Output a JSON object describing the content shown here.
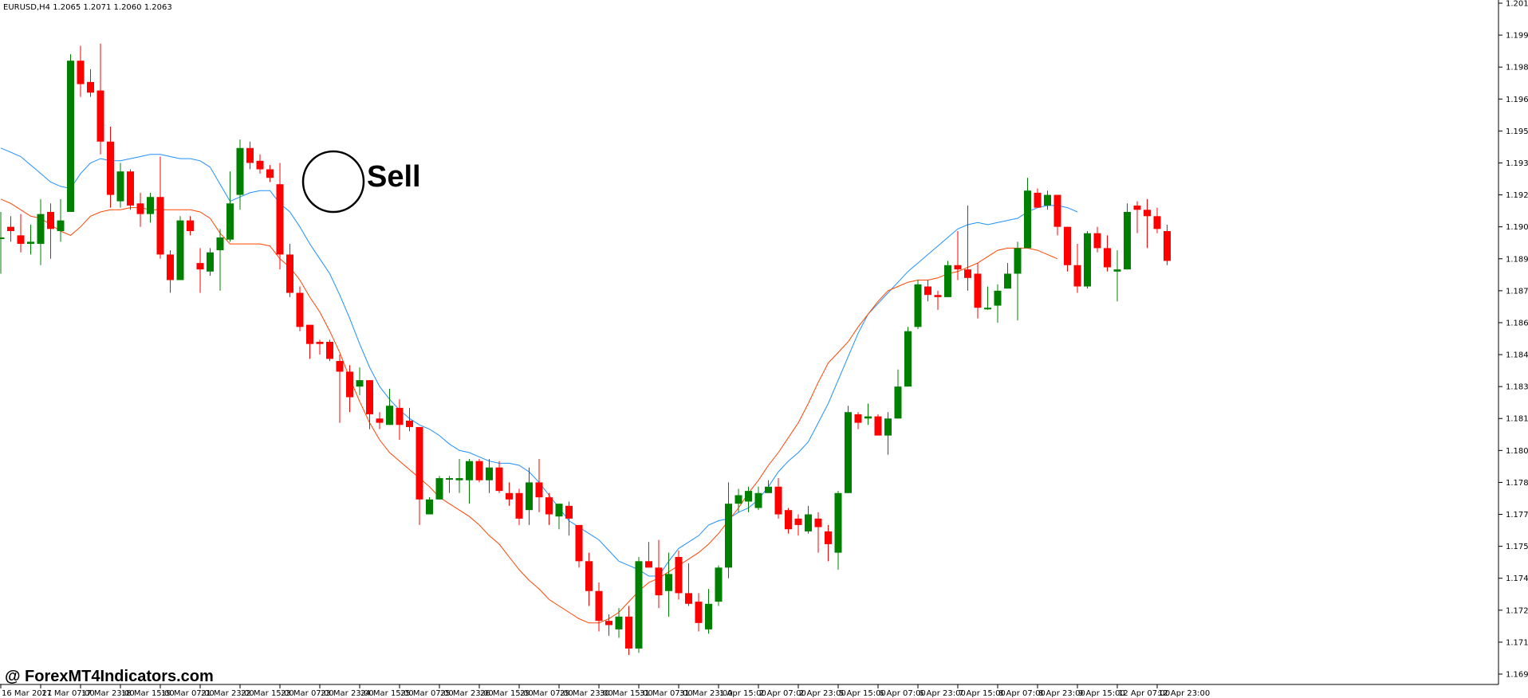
{
  "header": {
    "symbol_info": "EURUSD,H4 1.2065 1.2071 1.2060 1.2063"
  },
  "annotation": {
    "signal_label": "Sell"
  },
  "watermark": {
    "text": "@ ForexMT4Indicators.com"
  },
  "colors": {
    "bull": "#008000",
    "bear": "#ff0000",
    "ma_fast": "#1e90ff",
    "ma_slow": "#ff4500",
    "axis": "#000000"
  },
  "chart_data": {
    "type": "candlestick",
    "instrument": "EURUSD",
    "timeframe": "H4",
    "last_quote": {
      "open": 1.2065,
      "high": 1.2071,
      "low": 1.206,
      "close": 1.2063
    },
    "ylim": [
      1.1695,
      1.201
    ],
    "y_ticks": [
      "1.2010",
      "1.1995",
      "1.1980",
      "1.1965",
      "1.1950",
      "1.1935",
      "1.1920",
      "1.1905",
      "1.1890",
      "1.1875",
      "1.1860",
      "1.1845",
      "1.1830",
      "1.1815",
      "1.1800",
      "1.1785",
      "1.1770",
      "1.1755",
      "1.1740",
      "1.1725",
      "1.1710",
      "1.1695"
    ],
    "x_ticks": [
      {
        "label": "16 Mar 2021",
        "i": 0
      },
      {
        "label": "17 Mar 07:00",
        "i": 4
      },
      {
        "label": "17 Mar 23:00",
        "i": 8
      },
      {
        "label": "18 Mar 15:00",
        "i": 12
      },
      {
        "label": "19 Mar 07:00",
        "i": 16
      },
      {
        "label": "21 Mar 23:00",
        "i": 20
      },
      {
        "label": "22 Mar 15:00",
        "i": 24
      },
      {
        "label": "23 Mar 07:00",
        "i": 28
      },
      {
        "label": "23 Mar 23:00",
        "i": 32
      },
      {
        "label": "24 Mar 15:00",
        "i": 36
      },
      {
        "label": "25 Mar 07:00",
        "i": 40
      },
      {
        "label": "25 Mar 23:00",
        "i": 44
      },
      {
        "label": "26 Mar 15:00",
        "i": 48
      },
      {
        "label": "29 Mar 07:00",
        "i": 52
      },
      {
        "label": "29 Mar 23:00",
        "i": 56
      },
      {
        "label": "30 Mar 15:00",
        "i": 60
      },
      {
        "label": "31 Mar 07:00",
        "i": 64
      },
      {
        "label": "31 Mar 23:00",
        "i": 68
      },
      {
        "label": "1 Apr 15:00",
        "i": 72
      },
      {
        "label": "2 Apr 07:00",
        "i": 76
      },
      {
        "label": "2 Apr 23:00",
        "i": 80
      },
      {
        "label": "5 Apr 15:00",
        "i": 84
      },
      {
        "label": "6 Apr 07:00",
        "i": 88
      },
      {
        "label": "6 Apr 23:00",
        "i": 92
      },
      {
        "label": "7 Apr 15:00",
        "i": 96
      },
      {
        "label": "8 Apr 07:00",
        "i": 100
      },
      {
        "label": "8 Apr 23:00",
        "i": 104
      },
      {
        "label": "9 Apr 15:00",
        "i": 108
      },
      {
        "label": "12 Apr 07:00",
        "i": 112
      },
      {
        "label": "12 Apr 23:00",
        "i": 116
      }
    ],
    "candles": [
      {
        "o": 1.19,
        "h": 1.1912,
        "l": 1.1883,
        "c": 1.19
      },
      {
        "o": 1.1905,
        "h": 1.191,
        "l": 1.1898,
        "c": 1.1903
      },
      {
        "o": 1.1901,
        "h": 1.1911,
        "l": 1.1893,
        "c": 1.1897
      },
      {
        "o": 1.1897,
        "h": 1.1906,
        "l": 1.1892,
        "c": 1.1898
      },
      {
        "o": 1.1897,
        "h": 1.1918,
        "l": 1.1887,
        "c": 1.1911
      },
      {
        "o": 1.1912,
        "h": 1.1916,
        "l": 1.189,
        "c": 1.1904
      },
      {
        "o": 1.1903,
        "h": 1.1918,
        "l": 1.1898,
        "c": 1.1908
      },
      {
        "o": 1.1912,
        "h": 1.1986,
        "l": 1.1912,
        "c": 1.1983
      },
      {
        "o": 1.1983,
        "h": 1.199,
        "l": 1.1966,
        "c": 1.1972
      },
      {
        "o": 1.1973,
        "h": 1.1979,
        "l": 1.1966,
        "c": 1.1968
      },
      {
        "o": 1.1969,
        "h": 1.1991,
        "l": 1.1939,
        "c": 1.1945
      },
      {
        "o": 1.1945,
        "h": 1.1952,
        "l": 1.1914,
        "c": 1.192
      },
      {
        "o": 1.1917,
        "h": 1.1935,
        "l": 1.1914,
        "c": 1.1931
      },
      {
        "o": 1.1931,
        "h": 1.1932,
        "l": 1.1913,
        "c": 1.1915
      },
      {
        "o": 1.1916,
        "h": 1.1921,
        "l": 1.1905,
        "c": 1.1911
      },
      {
        "o": 1.1911,
        "h": 1.1921,
        "l": 1.1907,
        "c": 1.1919
      },
      {
        "o": 1.1919,
        "h": 1.1938,
        "l": 1.189,
        "c": 1.1892
      },
      {
        "o": 1.1892,
        "h": 1.1894,
        "l": 1.1874,
        "c": 1.188
      },
      {
        "o": 1.188,
        "h": 1.191,
        "l": 1.188,
        "c": 1.1908
      },
      {
        "o": 1.1908,
        "h": 1.191,
        "l": 1.1901,
        "c": 1.1903
      },
      {
        "o": 1.1888,
        "h": 1.1895,
        "l": 1.1874,
        "c": 1.1885
      },
      {
        "o": 1.1884,
        "h": 1.1895,
        "l": 1.1882,
        "c": 1.1893
      },
      {
        "o": 1.1894,
        "h": 1.1904,
        "l": 1.1875,
        "c": 1.19
      },
      {
        "o": 1.1899,
        "h": 1.1931,
        "l": 1.1898,
        "c": 1.1916
      },
      {
        "o": 1.192,
        "h": 1.1946,
        "l": 1.1913,
        "c": 1.1942
      },
      {
        "o": 1.1942,
        "h": 1.1945,
        "l": 1.1932,
        "c": 1.1935
      },
      {
        "o": 1.1936,
        "h": 1.1939,
        "l": 1.193,
        "c": 1.1932
      },
      {
        "o": 1.1932,
        "h": 1.1934,
        "l": 1.1926,
        "c": 1.1928
      },
      {
        "o": 1.1925,
        "h": 1.1935,
        "l": 1.1885,
        "c": 1.1892
      },
      {
        "o": 1.1892,
        "h": 1.1897,
        "l": 1.1872,
        "c": 1.1874
      },
      {
        "o": 1.1874,
        "h": 1.1877,
        "l": 1.1856,
        "c": 1.1858
      },
      {
        "o": 1.1859,
        "h": 1.1859,
        "l": 1.1843,
        "c": 1.185
      },
      {
        "o": 1.1851,
        "h": 1.1852,
        "l": 1.1845,
        "c": 1.185
      },
      {
        "o": 1.1851,
        "h": 1.1852,
        "l": 1.1842,
        "c": 1.1843
      },
      {
        "o": 1.1842,
        "h": 1.1845,
        "l": 1.1813,
        "c": 1.1837
      },
      {
        "o": 1.1837,
        "h": 1.184,
        "l": 1.1818,
        "c": 1.1825
      },
      {
        "o": 1.183,
        "h": 1.1839,
        "l": 1.1826,
        "c": 1.1833
      },
      {
        "o": 1.1833,
        "h": 1.1833,
        "l": 1.181,
        "c": 1.1817
      },
      {
        "o": 1.1815,
        "h": 1.1818,
        "l": 1.181,
        "c": 1.1813
      },
      {
        "o": 1.1812,
        "h": 1.1829,
        "l": 1.1812,
        "c": 1.1821
      },
      {
        "o": 1.182,
        "h": 1.1824,
        "l": 1.1805,
        "c": 1.1812
      },
      {
        "o": 1.1814,
        "h": 1.182,
        "l": 1.1809,
        "c": 1.1811
      },
      {
        "o": 1.1811,
        "h": 1.1811,
        "l": 1.1765,
        "c": 1.1777
      },
      {
        "o": 1.177,
        "h": 1.1778,
        "l": 1.177,
        "c": 1.1777
      },
      {
        "o": 1.1777,
        "h": 1.1788,
        "l": 1.1777,
        "c": 1.1787
      },
      {
        "o": 1.1787,
        "h": 1.1788,
        "l": 1.178,
        "c": 1.1787
      },
      {
        "o": 1.1786,
        "h": 1.1796,
        "l": 1.178,
        "c": 1.1787
      },
      {
        "o": 1.1786,
        "h": 1.1796,
        "l": 1.1775,
        "c": 1.1795
      },
      {
        "o": 1.1795,
        "h": 1.1796,
        "l": 1.1785,
        "c": 1.1786
      },
      {
        "o": 1.1786,
        "h": 1.1796,
        "l": 1.178,
        "c": 1.1792
      },
      {
        "o": 1.1792,
        "h": 1.1795,
        "l": 1.178,
        "c": 1.1781
      },
      {
        "o": 1.178,
        "h": 1.1785,
        "l": 1.1774,
        "c": 1.1777
      },
      {
        "o": 1.178,
        "h": 1.1782,
        "l": 1.1765,
        "c": 1.1768
      },
      {
        "o": 1.1772,
        "h": 1.1792,
        "l": 1.1765,
        "c": 1.1785
      },
      {
        "o": 1.1785,
        "h": 1.1796,
        "l": 1.1771,
        "c": 1.1778
      },
      {
        "o": 1.1778,
        "h": 1.178,
        "l": 1.1765,
        "c": 1.177
      },
      {
        "o": 1.1769,
        "h": 1.1772,
        "l": 1.1763,
        "c": 1.1775
      },
      {
        "o": 1.1774,
        "h": 1.1776,
        "l": 1.176,
        "c": 1.1768
      },
      {
        "o": 1.1765,
        "h": 1.1765,
        "l": 1.1745,
        "c": 1.1748
      },
      {
        "o": 1.1748,
        "h": 1.1752,
        "l": 1.1727,
        "c": 1.1734
      },
      {
        "o": 1.1734,
        "h": 1.1738,
        "l": 1.1715,
        "c": 1.172
      },
      {
        "o": 1.172,
        "h": 1.1723,
        "l": 1.1713,
        "c": 1.1718
      },
      {
        "o": 1.1716,
        "h": 1.1726,
        "l": 1.1712,
        "c": 1.1722
      },
      {
        "o": 1.1722,
        "h": 1.1727,
        "l": 1.1704,
        "c": 1.1707
      },
      {
        "o": 1.1707,
        "h": 1.175,
        "l": 1.1705,
        "c": 1.1748
      },
      {
        "o": 1.1748,
        "h": 1.1757,
        "l": 1.1745,
        "c": 1.1745
      },
      {
        "o": 1.1745,
        "h": 1.1758,
        "l": 1.1726,
        "c": 1.1732
      },
      {
        "o": 1.1734,
        "h": 1.1752,
        "l": 1.1722,
        "c": 1.1742
      },
      {
        "o": 1.175,
        "h": 1.1753,
        "l": 1.173,
        "c": 1.1733
      },
      {
        "o": 1.1733,
        "h": 1.1747,
        "l": 1.1727,
        "c": 1.1728
      },
      {
        "o": 1.1729,
        "h": 1.1733,
        "l": 1.1715,
        "c": 1.1719
      },
      {
        "o": 1.1716,
        "h": 1.1735,
        "l": 1.1714,
        "c": 1.1728
      },
      {
        "o": 1.1729,
        "h": 1.1746,
        "l": 1.1727,
        "c": 1.1745
      },
      {
        "o": 1.1745,
        "h": 1.1785,
        "l": 1.174,
        "c": 1.1775
      },
      {
        "o": 1.1775,
        "h": 1.1782,
        "l": 1.1771,
        "c": 1.1779
      },
      {
        "o": 1.1776,
        "h": 1.1783,
        "l": 1.1771,
        "c": 1.1781
      },
      {
        "o": 1.1773,
        "h": 1.1783,
        "l": 1.1772,
        "c": 1.178
      },
      {
        "o": 1.178,
        "h": 1.1786,
        "l": 1.178,
        "c": 1.1783
      },
      {
        "o": 1.1783,
        "h": 1.1787,
        "l": 1.1768,
        "c": 1.177
      },
      {
        "o": 1.1772,
        "h": 1.1773,
        "l": 1.1761,
        "c": 1.1763
      },
      {
        "o": 1.1768,
        "h": 1.177,
        "l": 1.176,
        "c": 1.1765
      },
      {
        "o": 1.1762,
        "h": 1.1774,
        "l": 1.1761,
        "c": 1.177
      },
      {
        "o": 1.1768,
        "h": 1.1771,
        "l": 1.1752,
        "c": 1.1764
      },
      {
        "o": 1.1762,
        "h": 1.1765,
        "l": 1.1748,
        "c": 1.1756
      },
      {
        "o": 1.1752,
        "h": 1.1781,
        "l": 1.1744,
        "c": 1.178
      },
      {
        "o": 1.178,
        "h": 1.1821,
        "l": 1.178,
        "c": 1.1818
      },
      {
        "o": 1.1817,
        "h": 1.1818,
        "l": 1.181,
        "c": 1.1813
      },
      {
        "o": 1.1815,
        "h": 1.1822,
        "l": 1.1812,
        "c": 1.1816
      },
      {
        "o": 1.1816,
        "h": 1.1817,
        "l": 1.181,
        "c": 1.1807
      },
      {
        "o": 1.1807,
        "h": 1.1818,
        "l": 1.1798,
        "c": 1.1815
      },
      {
        "o": 1.1815,
        "h": 1.1838,
        "l": 1.1815,
        "c": 1.183
      },
      {
        "o": 1.183,
        "h": 1.1858,
        "l": 1.183,
        "c": 1.1856
      },
      {
        "o": 1.1858,
        "h": 1.188,
        "l": 1.1857,
        "c": 1.1878
      },
      {
        "o": 1.1877,
        "h": 1.188,
        "l": 1.187,
        "c": 1.1873
      },
      {
        "o": 1.1873,
        "h": 1.1875,
        "l": 1.1866,
        "c": 1.1872
      },
      {
        "o": 1.1872,
        "h": 1.1889,
        "l": 1.1872,
        "c": 1.1887
      },
      {
        "o": 1.1887,
        "h": 1.1903,
        "l": 1.188,
        "c": 1.1885
      },
      {
        "o": 1.1885,
        "h": 1.1915,
        "l": 1.1875,
        "c": 1.1881
      },
      {
        "o": 1.1883,
        "h": 1.1888,
        "l": 1.1862,
        "c": 1.1867
      },
      {
        "o": 1.1867,
        "h": 1.1877,
        "l": 1.1866,
        "c": 1.1867
      },
      {
        "o": 1.1868,
        "h": 1.1878,
        "l": 1.186,
        "c": 1.1875
      },
      {
        "o": 1.1876,
        "h": 1.1888,
        "l": 1.1876,
        "c": 1.1883
      },
      {
        "o": 1.1883,
        "h": 1.1898,
        "l": 1.1861,
        "c": 1.1895
      },
      {
        "o": 1.1895,
        "h": 1.1928,
        "l": 1.1895,
        "c": 1.1922
      },
      {
        "o": 1.1921,
        "h": 1.1923,
        "l": 1.1914,
        "c": 1.1914
      },
      {
        "o": 1.1915,
        "h": 1.1922,
        "l": 1.1913,
        "c": 1.192
      },
      {
        "o": 1.192,
        "h": 1.192,
        "l": 1.1901,
        "c": 1.1905
      },
      {
        "o": 1.1905,
        "h": 1.1905,
        "l": 1.1884,
        "c": 1.1887
      },
      {
        "o": 1.1887,
        "h": 1.1897,
        "l": 1.1874,
        "c": 1.1877
      },
      {
        "o": 1.1877,
        "h": 1.1903,
        "l": 1.1876,
        "c": 1.1902
      },
      {
        "o": 1.1902,
        "h": 1.1905,
        "l": 1.1893,
        "c": 1.1895
      },
      {
        "o": 1.1895,
        "h": 1.1901,
        "l": 1.1884,
        "c": 1.1886
      },
      {
        "o": 1.1884,
        "h": 1.1894,
        "l": 1.187,
        "c": 1.1885
      },
      {
        "o": 1.1885,
        "h": 1.1916,
        "l": 1.1885,
        "c": 1.1912
      },
      {
        "o": 1.1915,
        "h": 1.1917,
        "l": 1.1902,
        "c": 1.1913
      },
      {
        "o": 1.1913,
        "h": 1.1918,
        "l": 1.1895,
        "c": 1.191
      },
      {
        "o": 1.191,
        "h": 1.1914,
        "l": 1.1902,
        "c": 1.1904
      },
      {
        "o": 1.1903,
        "h": 1.1906,
        "l": 1.1887,
        "c": 1.1889
      }
    ],
    "ma_fast": [
      1.1942,
      1.194,
      1.1938,
      1.1934,
      1.193,
      1.1926,
      1.1924,
      1.1923,
      1.193,
      1.1935,
      1.1937,
      1.1936,
      1.1936,
      1.1937,
      1.1938,
      1.1939,
      1.1939,
      1.1938,
      1.1937,
      1.1937,
      1.1936,
      1.1933,
      1.1925,
      1.1917,
      1.1919,
      1.1921,
      1.1922,
      1.1922,
      1.1916,
      1.1912,
      1.1905,
      1.1897,
      1.189,
      1.1883,
      1.1873,
      1.1862,
      1.185,
      1.1839,
      1.183,
      1.1824,
      1.1819,
      1.1815,
      1.1812,
      1.181,
      1.1807,
      1.1803,
      1.18,
      1.1799,
      1.1797,
      1.1795,
      1.1794,
      1.1794,
      1.1793,
      1.179,
      1.1785,
      1.1779,
      1.1773,
      1.1767,
      1.1764,
      1.1761,
      1.1758,
      1.1753,
      1.1748,
      1.1746,
      1.1744,
      1.1741,
      1.1741,
      1.1748,
      1.1754,
      1.1757,
      1.176,
      1.1765,
      1.1767,
      1.1768,
      1.1771,
      1.1773,
      1.1777,
      1.1783,
      1.179,
      1.1795,
      1.1799,
      1.1804,
      1.1813,
      1.1822,
      1.1833,
      1.1844,
      1.1855,
      1.1864,
      1.1869,
      1.1874,
      1.1879,
      1.1884,
      1.1888,
      1.1892,
      1.1896,
      1.19,
      1.1904,
      1.1906,
      1.1907,
      1.1906,
      1.1907,
      1.1908,
      1.1909,
      1.1912,
      1.1914,
      1.1915,
      1.1915,
      1.1914,
      1.1912
    ],
    "ma_slow": [
      1.1918,
      1.1916,
      1.1913,
      1.191,
      1.1909,
      1.1906,
      1.1903,
      1.1901,
      1.1905,
      1.191,
      1.1912,
      1.1913,
      1.1913,
      1.1914,
      1.1914,
      1.1913,
      1.1913,
      1.1913,
      1.1913,
      1.1913,
      1.1912,
      1.1909,
      1.1902,
      1.1897,
      1.1897,
      1.1897,
      1.1897,
      1.1896,
      1.189,
      1.1886,
      1.188,
      1.1872,
      1.1865,
      1.1856,
      1.1846,
      1.1834,
      1.1823,
      1.1813,
      1.1805,
      1.1799,
      1.1795,
      1.1791,
      1.1787,
      1.1783,
      1.1778,
      1.1775,
      1.1772,
      1.1769,
      1.1765,
      1.176,
      1.1756,
      1.175,
      1.1744,
      1.1739,
      1.1735,
      1.173,
      1.1727,
      1.1724,
      1.1721,
      1.1719,
      1.1719,
      1.1721,
      1.1724,
      1.1729,
      1.1734,
      1.1738,
      1.174,
      1.1743,
      1.1746,
      1.1749,
      1.1752,
      1.1756,
      1.1761,
      1.1767,
      1.1773,
      1.178,
      1.1786,
      1.1793,
      1.1799,
      1.1806,
      1.1813,
      1.1822,
      1.1832,
      1.1841,
      1.1846,
      1.1851,
      1.1858,
      1.1864,
      1.187,
      1.1875,
      1.1877,
      1.1879,
      1.188,
      1.188,
      1.1881,
      1.1883,
      1.1884,
      1.1886,
      1.1888,
      1.1891,
      1.1894,
      1.1895,
      1.1895,
      1.1895,
      1.1894,
      1.1892,
      1.189
    ]
  }
}
